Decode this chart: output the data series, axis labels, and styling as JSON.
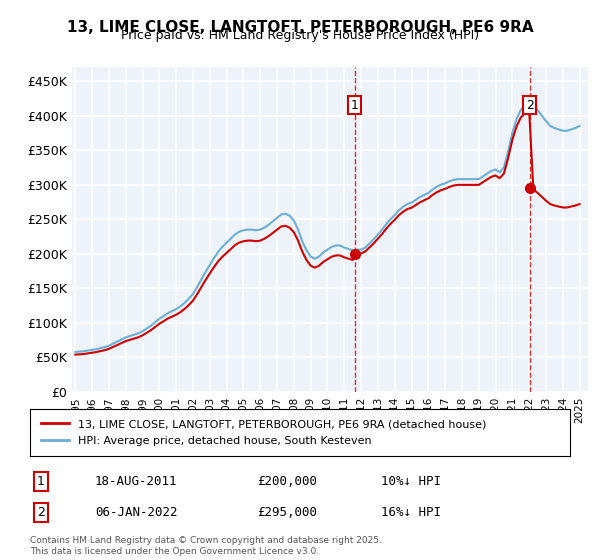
{
  "title_line1": "13, LIME CLOSE, LANGTOFT, PETERBOROUGH, PE6 9RA",
  "title_line2": "Price paid vs. HM Land Registry's House Price Index (HPI)",
  "ylabel_ticks": [
    "£0",
    "£50K",
    "£100K",
    "£150K",
    "£200K",
    "£250K",
    "£300K",
    "£350K",
    "£400K",
    "£450K"
  ],
  "ytick_values": [
    0,
    50000,
    100000,
    150000,
    200000,
    250000,
    300000,
    350000,
    400000,
    450000
  ],
  "ylim": [
    0,
    470000
  ],
  "xlim_start": 1995,
  "xlim_end": 2026,
  "background_color": "#e8f0f8",
  "plot_bg": "#eef3fa",
  "grid_color": "#ffffff",
  "hpi_color": "#6baed6",
  "price_color": "#cc0000",
  "marker_color": "#cc0000",
  "vline_color": "#cc0000",
  "annotation_box_color": "#cc0000",
  "transaction1": {
    "date": "18-AUG-2011",
    "price": 200000,
    "pct": "10%↓ HPI",
    "label": "1",
    "x": 2011.63
  },
  "transaction2": {
    "date": "06-JAN-2022",
    "price": 295000,
    "pct": "16%↓ HPI",
    "label": "2",
    "x": 2022.03
  },
  "legend_line1": "13, LIME CLOSE, LANGTOFT, PETERBOROUGH, PE6 9RA (detached house)",
  "legend_line2": "HPI: Average price, detached house, South Kesteven",
  "footnote": "Contains HM Land Registry data © Crown copyright and database right 2025.\nThis data is licensed under the Open Government Licence v3.0.",
  "hpi_data_x": [
    1995,
    1995.25,
    1995.5,
    1995.75,
    1996,
    1996.25,
    1996.5,
    1996.75,
    1997,
    1997.25,
    1997.5,
    1997.75,
    1998,
    1998.25,
    1998.5,
    1998.75,
    1999,
    1999.25,
    1999.5,
    1999.75,
    2000,
    2000.25,
    2000.5,
    2000.75,
    2001,
    2001.25,
    2001.5,
    2001.75,
    2002,
    2002.25,
    2002.5,
    2002.75,
    2003,
    2003.25,
    2003.5,
    2003.75,
    2004,
    2004.25,
    2004.5,
    2004.75,
    2005,
    2005.25,
    2005.5,
    2005.75,
    2006,
    2006.25,
    2006.5,
    2006.75,
    2007,
    2007.25,
    2007.5,
    2007.75,
    2008,
    2008.25,
    2008.5,
    2008.75,
    2009,
    2009.25,
    2009.5,
    2009.75,
    2010,
    2010.25,
    2010.5,
    2010.75,
    2011,
    2011.25,
    2011.5,
    2011.75,
    2012,
    2012.25,
    2012.5,
    2012.75,
    2013,
    2013.25,
    2013.5,
    2013.75,
    2014,
    2014.25,
    2014.5,
    2014.75,
    2015,
    2015.25,
    2015.5,
    2015.75,
    2016,
    2016.25,
    2016.5,
    2016.75,
    2017,
    2017.25,
    2017.5,
    2017.75,
    2018,
    2018.25,
    2018.5,
    2018.75,
    2019,
    2019.25,
    2019.5,
    2019.75,
    2020,
    2020.25,
    2020.5,
    2020.75,
    2021,
    2021.25,
    2021.5,
    2021.75,
    2022,
    2022.25,
    2022.5,
    2022.75,
    2023,
    2023.25,
    2023.5,
    2023.75,
    2024,
    2024.25,
    2024.5,
    2024.75,
    2025
  ],
  "hpi_data_y": [
    58000,
    58500,
    59000,
    60000,
    61000,
    62000,
    63500,
    65000,
    67000,
    70000,
    73000,
    76000,
    79000,
    81000,
    83000,
    85000,
    88000,
    92000,
    96000,
    101000,
    106000,
    110000,
    114000,
    117000,
    120000,
    124000,
    129000,
    135000,
    142000,
    152000,
    163000,
    174000,
    184000,
    194000,
    203000,
    210000,
    216000,
    222000,
    228000,
    232000,
    234000,
    235000,
    235000,
    234000,
    235000,
    238000,
    242000,
    247000,
    252000,
    257000,
    258000,
    255000,
    248000,
    235000,
    218000,
    205000,
    196000,
    193000,
    196000,
    202000,
    206000,
    210000,
    212000,
    212000,
    209000,
    207000,
    205000,
    206000,
    206000,
    209000,
    215000,
    221000,
    228000,
    235000,
    243000,
    250000,
    256000,
    263000,
    268000,
    272000,
    274000,
    278000,
    282000,
    285000,
    288000,
    293000,
    297000,
    300000,
    302000,
    305000,
    307000,
    308000,
    308000,
    308000,
    308000,
    308000,
    308000,
    312000,
    316000,
    320000,
    322000,
    318000,
    325000,
    348000,
    375000,
    395000,
    408000,
    415000,
    418000,
    415000,
    408000,
    400000,
    392000,
    385000,
    382000,
    380000,
    378000,
    378000,
    380000,
    382000,
    385000
  ],
  "price_data_x": [
    1995.5,
    2011.63,
    2022.03
  ],
  "price_data_y": [
    55000,
    200000,
    295000
  ]
}
